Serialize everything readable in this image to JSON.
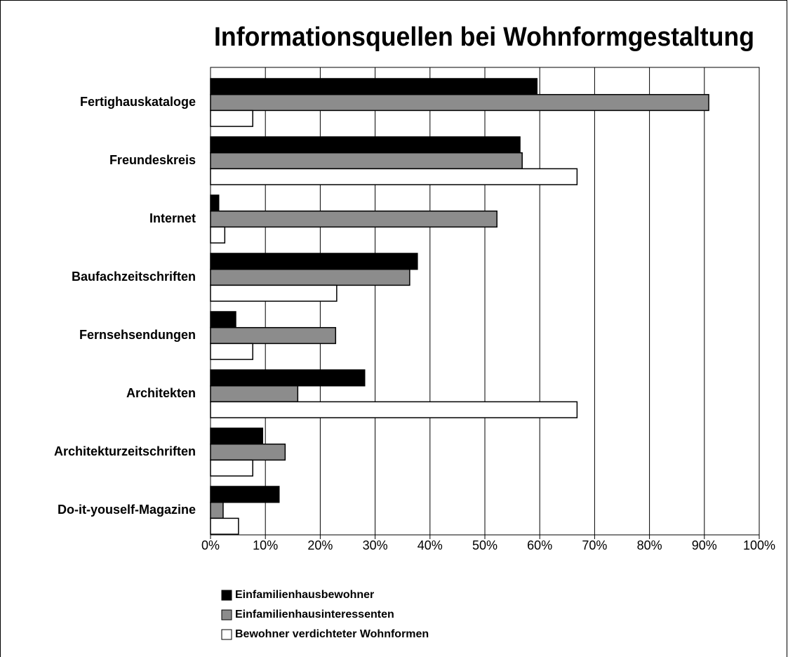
{
  "chart_data": {
    "type": "bar",
    "orientation": "horizontal",
    "title": "Informationsquellen bei Wohnformgestaltung",
    "categories": [
      "Fertighauskataloge",
      "Freundeskreis",
      "Internet",
      "Baufachzeitschriften",
      "Fernsehsendungen",
      "Architekten",
      "Architekturzeitschriften",
      "Do-it-youself-Magazine"
    ],
    "series": [
      {
        "name": "Einfamilienhausbewohner",
        "color": "#000000",
        "values": [
          59.5,
          56.4,
          1.5,
          37.7,
          4.6,
          28.1,
          9.5,
          12.5
        ]
      },
      {
        "name": "Einfamilienhausinteressenten",
        "color": "#8c8c8c",
        "values": [
          90.8,
          56.8,
          52.2,
          36.3,
          22.8,
          15.9,
          13.6,
          2.3
        ]
      },
      {
        "name": "Bewohner verdichteter Wohnformen",
        "color": "#ffffff",
        "values": [
          7.7,
          66.8,
          2.6,
          23,
          7.7,
          66.8,
          7.7,
          5.1
        ]
      }
    ],
    "xlim": [
      0,
      100
    ],
    "xticks": [
      {
        "value": 0,
        "label": "0%"
      },
      {
        "value": 10,
        "label": "10%"
      },
      {
        "value": 20,
        "label": "20%"
      },
      {
        "value": 30,
        "label": "30%"
      },
      {
        "value": 40,
        "label": "40%"
      },
      {
        "value": 50,
        "label": "50%"
      },
      {
        "value": 60,
        "label": "60%"
      },
      {
        "value": 70,
        "label": "70%"
      },
      {
        "value": 80,
        "label": "80%"
      },
      {
        "value": 90,
        "label": "90%"
      },
      {
        "value": 100,
        "label": "100%"
      }
    ],
    "grid": true,
    "legend": "bottom-left"
  }
}
